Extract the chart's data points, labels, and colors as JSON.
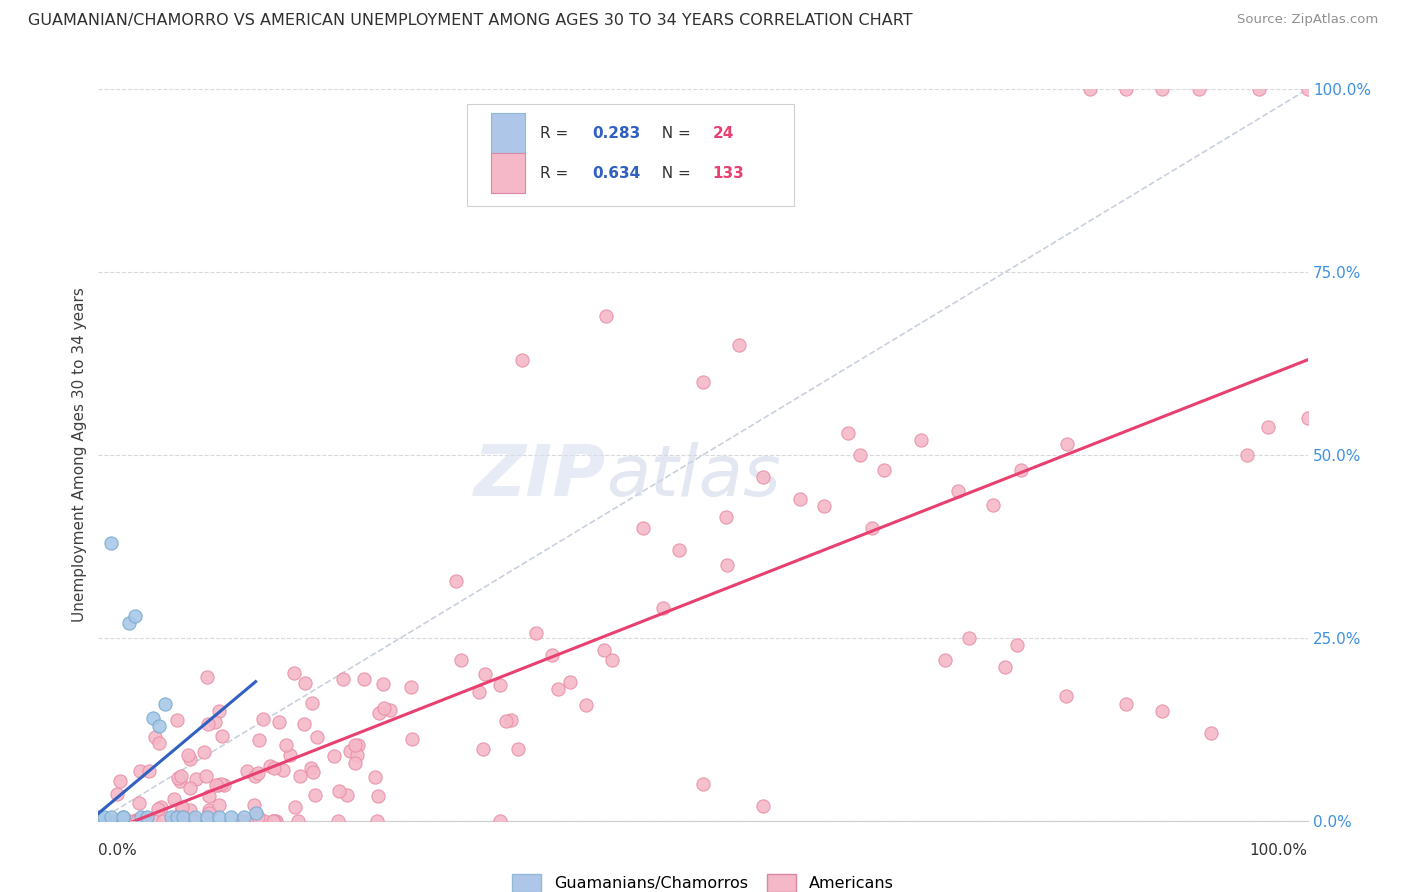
{
  "title": "GUAMANIAN/CHAMORRO VS AMERICAN UNEMPLOYMENT AMONG AGES 30 TO 34 YEARS CORRELATION CHART",
  "source": "Source: ZipAtlas.com",
  "ylabel": "Unemployment Among Ages 30 to 34 years",
  "right_yticks": [
    "100.0%",
    "75.0%",
    "50.0%",
    "25.0%",
    "0.0%"
  ],
  "right_ytick_vals": [
    1.0,
    0.75,
    0.5,
    0.25,
    0.0
  ],
  "watermark_zip": "ZIP",
  "watermark_atlas": "atlas",
  "scatter_color_guamanian": "#a8c8e8",
  "scatter_edge_guamanian": "#7aaad0",
  "scatter_color_american": "#f5b8c8",
  "scatter_edge_american": "#e890a8",
  "line_color_guamanian": "#3060c0",
  "line_color_american": "#e84070",
  "diag_line_color": "#c0c8d8",
  "background_color": "#ffffff",
  "title_color": "#303030",
  "source_color": "#909090",
  "right_tick_color": "#4090e0",
  "legend_R_color": "#3060c0",
  "legend_N_color": "#e84070",
  "legend_box_color": "#aec6e8",
  "legend_box_color2": "#f5b8c8",
  "guam_R": "0.283",
  "guam_N": "24",
  "am_R": "0.634",
  "am_N": "133",
  "legend_label_guam": "Guamanians/Chamorros",
  "legend_label_am": "Americans"
}
